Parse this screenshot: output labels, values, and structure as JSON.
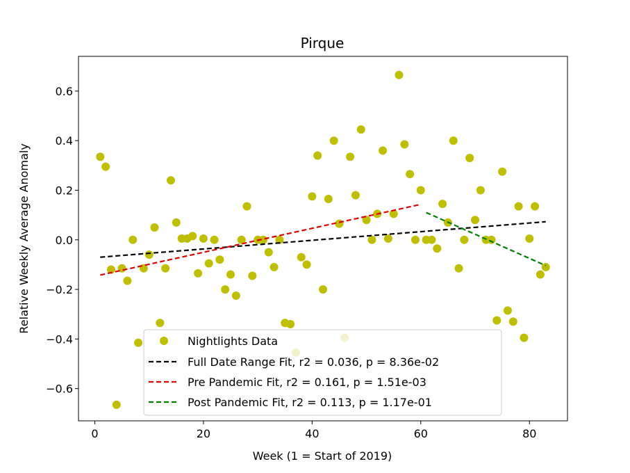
{
  "chart_data": {
    "type": "scatter",
    "title": "Pirque",
    "xlabel": "Week (1 = Start of 2019)",
    "ylabel": "Relative Weekly Average Anomaly",
    "xlim": [
      -3,
      87
    ],
    "ylim": [
      -0.73,
      0.74
    ],
    "xticks": [
      0,
      20,
      40,
      60,
      80
    ],
    "yticks": [
      -0.6,
      -0.4,
      -0.2,
      0.0,
      0.2,
      0.4,
      0.6
    ],
    "xtick_labels": [
      "0",
      "20",
      "40",
      "60",
      "80"
    ],
    "ytick_labels": [
      "−0.6",
      "−0.4",
      "−0.2",
      "0.0",
      "0.2",
      "0.4",
      "0.6"
    ],
    "grid": false,
    "legend_placement": "bottom-center",
    "points": {
      "name": "Nightlights Data",
      "color": "#bfbf00",
      "x": [
        1,
        2,
        3,
        4,
        5,
        6,
        7,
        8,
        9,
        10,
        11,
        12,
        13,
        14,
        15,
        16,
        17,
        18,
        19,
        20,
        21,
        22,
        23,
        24,
        25,
        26,
        27,
        28,
        29,
        30,
        31,
        32,
        33,
        34,
        35,
        36,
        37,
        38,
        39,
        40,
        41,
        42,
        43,
        44,
        45,
        46,
        47,
        48,
        49,
        50,
        51,
        52,
        53,
        54,
        55,
        56,
        57,
        58,
        59,
        60,
        61,
        62,
        63,
        64,
        65,
        66,
        67,
        68,
        69,
        70,
        71,
        72,
        73,
        74,
        75,
        76,
        77,
        78,
        79,
        80,
        81,
        82,
        83
      ],
      "y": [
        0.335,
        0.295,
        -0.12,
        -0.665,
        -0.115,
        -0.165,
        0.0,
        -0.415,
        -0.115,
        -0.06,
        0.05,
        -0.335,
        -0.115,
        0.24,
        0.07,
        0.005,
        0.005,
        0.015,
        -0.135,
        0.005,
        -0.095,
        0.0,
        -0.08,
        -0.2,
        -0.14,
        -0.225,
        0.0,
        0.135,
        -0.145,
        0.0,
        0.0,
        -0.05,
        -0.11,
        0.0,
        -0.335,
        -0.34,
        -0.455,
        -0.07,
        -0.1,
        0.175,
        0.34,
        -0.2,
        0.165,
        0.4,
        0.065,
        -0.395,
        0.335,
        0.18,
        0.445,
        0.08,
        0.0,
        0.105,
        0.36,
        0.005,
        0.105,
        0.665,
        0.385,
        0.265,
        0.0,
        0.2,
        0.0,
        0.0,
        -0.035,
        0.145,
        0.07,
        0.4,
        -0.115,
        0.0,
        0.33,
        0.08,
        0.2,
        0.0,
        0.0,
        -0.325,
        0.275,
        -0.285,
        -0.33,
        0.135,
        -0.395,
        0.005,
        0.135,
        -0.14,
        -0.11
      ]
    },
    "series": [
      {
        "name": "Full Date Range Fit, r2 = 0.036, p = 8.36e-02",
        "color": "#000000",
        "x": [
          1,
          83
        ],
        "y": [
          -0.07,
          0.073
        ]
      },
      {
        "name": "Pre Pandemic Fit, r2 = 0.161, p = 1.51e-03",
        "color": "#e00000",
        "x": [
          1,
          60
        ],
        "y": [
          -0.142,
          0.143
        ]
      },
      {
        "name": "Post Pandemic Fit, r2 = 0.113, p = 1.17e-01",
        "color": "#008000",
        "x": [
          61,
          83
        ],
        "y": [
          0.11,
          -0.104
        ]
      }
    ]
  }
}
